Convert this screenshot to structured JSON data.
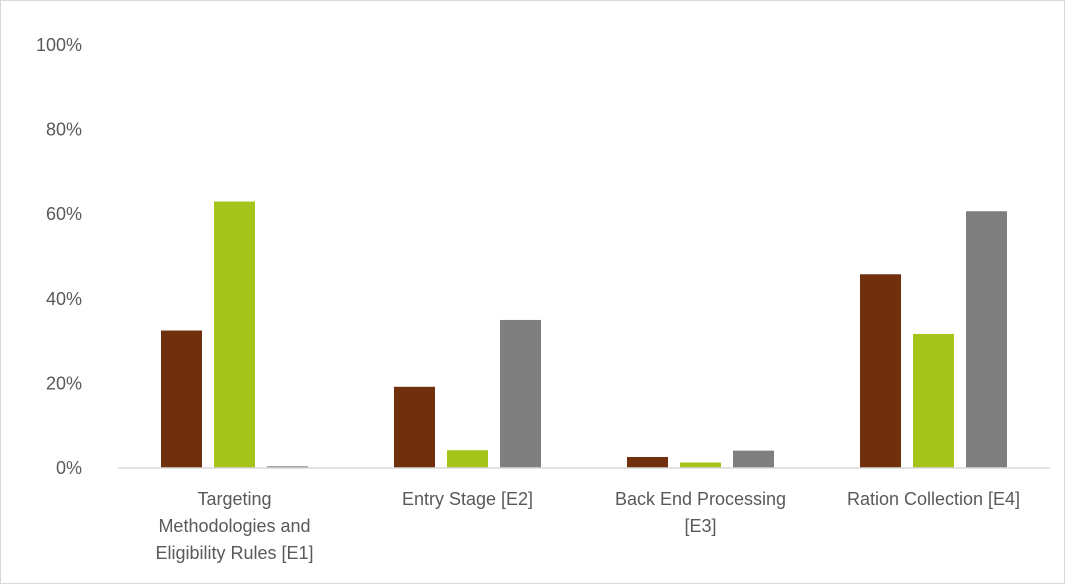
{
  "chart_data": {
    "type": "bar",
    "categories": [
      "Targeting Methodologies and Eligibility Rules [E1]",
      "Entry Stage [E2]",
      "Back End Processing [E3]",
      "Ration Collection [E4]"
    ],
    "category_lines": [
      [
        "Targeting",
        "Methodologies and",
        "Eligibility Rules [E1]"
      ],
      [
        "Entry Stage [E2]"
      ],
      [
        "Back End Processing",
        "[E3]"
      ],
      [
        "Ration Collection [E4]"
      ]
    ],
    "series": [
      {
        "color": "#70300d",
        "values": [
          32.5,
          19.2,
          2.6,
          45.8
        ]
      },
      {
        "color": "#a5c51a",
        "values": [
          63.0,
          4.2,
          1.3,
          31.7
        ]
      },
      {
        "color": "#7f7f7f",
        "values": [
          0.4,
          35.0,
          4.1,
          60.7
        ]
      }
    ],
    "ylim": [
      0,
      100
    ],
    "yticks": [
      "0%",
      "20%",
      "40%",
      "60%",
      "80%",
      "100%"
    ],
    "ytick_values": [
      0,
      20,
      40,
      60,
      80,
      100
    ],
    "grid": false,
    "title": "",
    "xlabel": "",
    "ylabel": ""
  }
}
